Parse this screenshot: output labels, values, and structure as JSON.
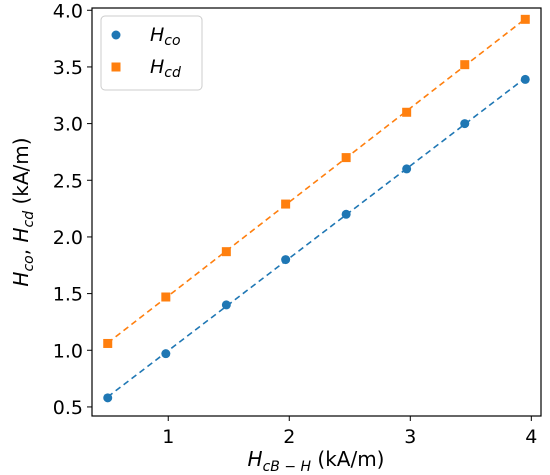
{
  "chart_data": {
    "type": "scatter",
    "title": "",
    "xlabel": {
      "main": "H",
      "sub": "cB − H",
      "unit": " (kA/m)"
    },
    "ylabel": {
      "main1": "H",
      "sub1": "co",
      "sep": ", ",
      "main2": "H",
      "sub2": "cd",
      "unit": " (kA/m)"
    },
    "xlim": [
      0.37,
      4.08
    ],
    "ylim": [
      0.42,
      4.02
    ],
    "xticks": [
      1,
      2,
      3,
      4
    ],
    "xtick_labels": [
      "1",
      "2",
      "3",
      "4"
    ],
    "yticks": [
      0.5,
      1.0,
      1.5,
      2.0,
      2.5,
      3.0,
      3.5,
      4.0
    ],
    "ytick_labels": [
      "0.5",
      "1.0",
      "1.5",
      "2.0",
      "2.5",
      "3.0",
      "3.5",
      "4.0"
    ],
    "grid": false,
    "legend_position": "top-left",
    "x": [
      0.5,
      0.98,
      1.48,
      1.97,
      2.47,
      2.97,
      3.45,
      3.95
    ],
    "series": [
      {
        "name": "H",
        "name_sub": "co",
        "marker": "circle",
        "color": "#1f77b4",
        "values": [
          0.58,
          0.97,
          1.4,
          1.8,
          2.2,
          2.6,
          3.0,
          3.39
        ]
      },
      {
        "name": "H",
        "name_sub": "cd",
        "marker": "square",
        "color": "#ff7f0e",
        "values": [
          1.06,
          1.47,
          1.87,
          2.29,
          2.7,
          3.1,
          3.52,
          3.92
        ]
      }
    ]
  }
}
